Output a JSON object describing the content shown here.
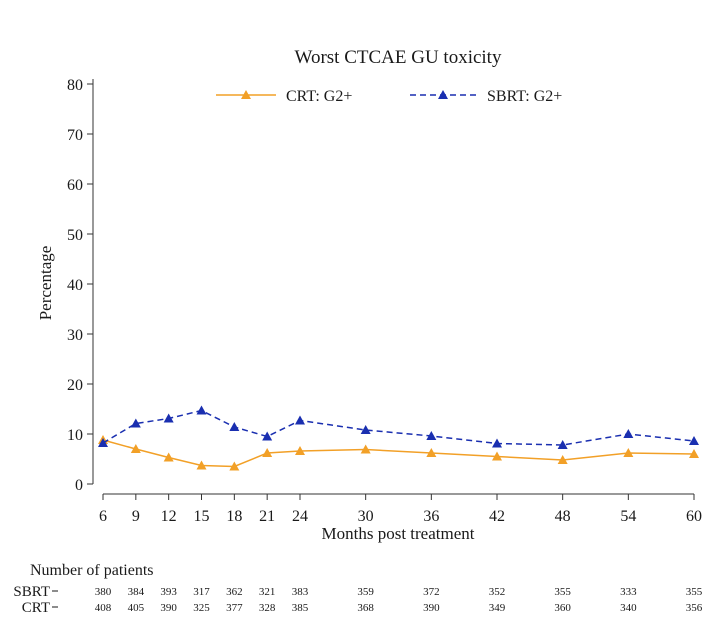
{
  "chart_data": {
    "type": "line",
    "title": "Worst CTCAE GU toxicity",
    "xlabel": "Months post treatment",
    "ylabel": "Percentage",
    "x": [
      6,
      9,
      12,
      15,
      18,
      21,
      24,
      30,
      36,
      42,
      48,
      54,
      60
    ],
    "ylim": [
      0,
      80
    ],
    "yticks": [
      0,
      10,
      20,
      30,
      40,
      50,
      60,
      70,
      80
    ],
    "grid": false,
    "legend": "top",
    "series": [
      {
        "name": "CRT: G2+",
        "color": "#f2a027",
        "style": "solid",
        "marker": "triangle",
        "values": [
          8.8,
          7.0,
          5.3,
          3.7,
          3.5,
          6.2,
          6.6,
          6.9,
          6.2,
          5.5,
          4.8,
          6.2,
          6.0
        ]
      },
      {
        "name": "SBRT: G2+",
        "color": "#1a2fb0",
        "style": "dashed",
        "marker": "triangle",
        "values": [
          8.2,
          12.1,
          13.1,
          14.7,
          11.4,
          9.5,
          12.7,
          10.8,
          9.6,
          8.1,
          7.8,
          10.0,
          8.6
        ]
      }
    ]
  },
  "risk_table": {
    "heading": "Number of patients",
    "rows": [
      {
        "label": "SBRT",
        "values": [
          "380",
          "384",
          "393",
          "317",
          "362",
          "321",
          "383",
          "359",
          "372",
          "352",
          "355",
          "333",
          "355"
        ]
      },
      {
        "label": "CRT",
        "values": [
          "408",
          "405",
          "390",
          "325",
          "377",
          "328",
          "385",
          "368",
          "390",
          "349",
          "360",
          "340",
          "356"
        ]
      }
    ]
  }
}
